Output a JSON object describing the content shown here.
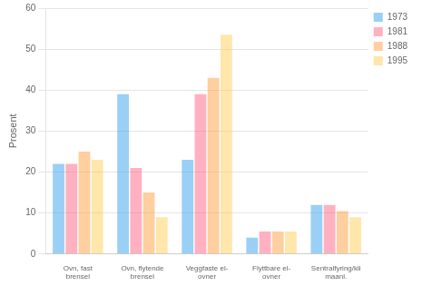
{
  "chart_data": {
    "type": "bar",
    "categories": [
      "Ovn, fast\nbrensel",
      "Ovn, flytende\nbrensel",
      "Veggfaste el-\novner",
      "Flyttbare el-\novner",
      "Sentralfyring/kli\nmaanl."
    ],
    "series": [
      {
        "name": "1973",
        "values": [
          22,
          39,
          23,
          4,
          12
        ]
      },
      {
        "name": "1981",
        "values": [
          22,
          21,
          39,
          5.5,
          12
        ]
      },
      {
        "name": "1988",
        "values": [
          25,
          15,
          43,
          5.5,
          10.5
        ]
      },
      {
        "name": "1995",
        "values": [
          23,
          9,
          53.5,
          5.5,
          9
        ]
      }
    ],
    "ylabel": "Prosent",
    "ylim": [
      0,
      60
    ],
    "yticks": [
      0,
      10,
      20,
      30,
      40,
      50,
      60
    ],
    "grid": true,
    "legend": "right"
  }
}
